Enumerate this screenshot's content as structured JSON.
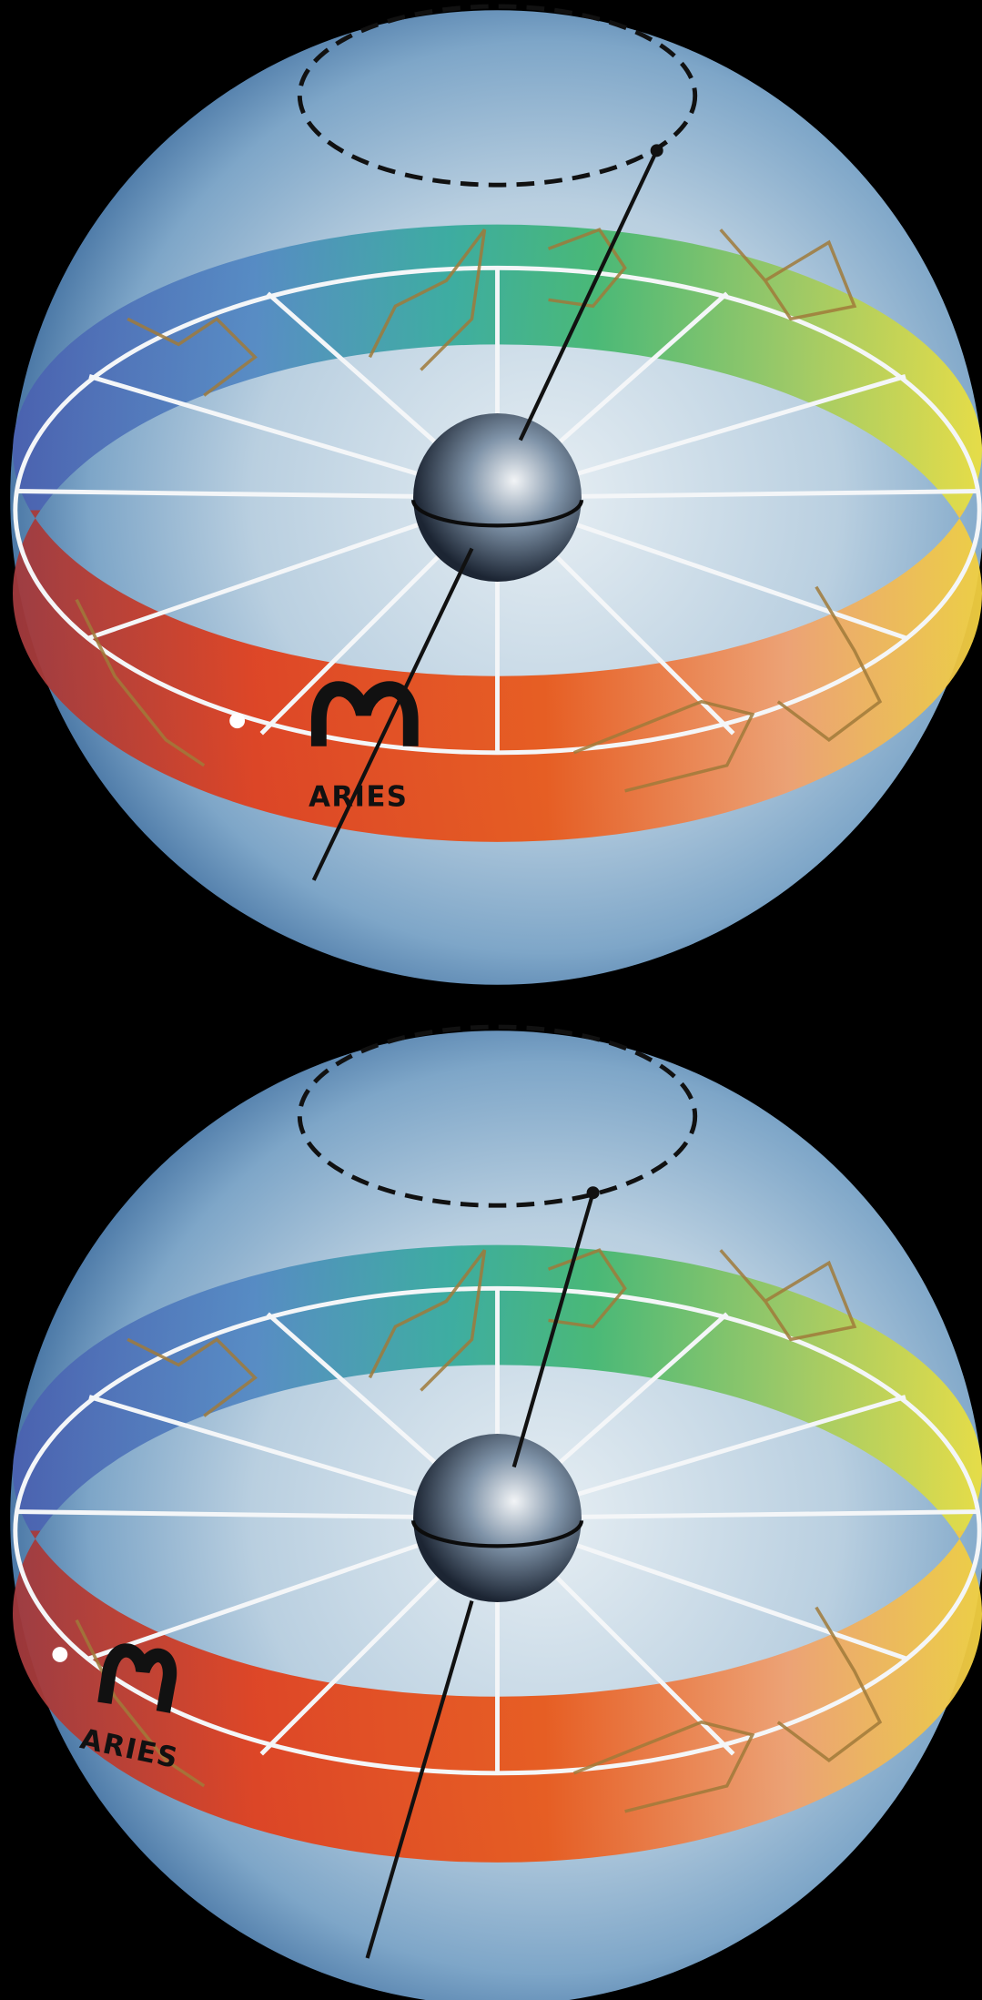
{
  "spheres": [
    {
      "label": "ARIES"
    },
    {
      "label": "ARIES"
    }
  ]
}
